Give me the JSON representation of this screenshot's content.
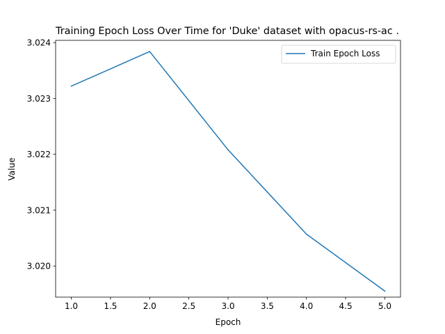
{
  "chart_data": {
    "type": "line",
    "title": "Training Epoch Loss Over Time for 'Duke' dataset with opacus-rs-ac .",
    "xlabel": "Epoch",
    "ylabel": "Value",
    "x": [
      1.0,
      2.0,
      3.0,
      4.0,
      5.0
    ],
    "series": [
      {
        "name": "Train Epoch Loss",
        "values": [
          3.02322,
          3.02384,
          3.02208,
          3.02057,
          3.01955
        ],
        "color": "#1f77b4"
      }
    ],
    "xlim": [
      0.8,
      5.2
    ],
    "ylim": [
      3.019442,
      3.02404
    ],
    "xticks": [
      {
        "value": 1.0,
        "label": "1.0"
      },
      {
        "value": 1.5,
        "label": "1.5"
      },
      {
        "value": 2.0,
        "label": "2.0"
      },
      {
        "value": 2.5,
        "label": "2.5"
      },
      {
        "value": 3.0,
        "label": "3.0"
      },
      {
        "value": 3.5,
        "label": "3.5"
      },
      {
        "value": 4.0,
        "label": "4.0"
      },
      {
        "value": 4.5,
        "label": "4.5"
      },
      {
        "value": 5.0,
        "label": "5.0"
      }
    ],
    "yticks": [
      {
        "value": 3.02,
        "label": "3.020"
      },
      {
        "value": 3.021,
        "label": "3.021"
      },
      {
        "value": 3.022,
        "label": "3.022"
      },
      {
        "value": 3.023,
        "label": "3.023"
      },
      {
        "value": 3.024,
        "label": "3.024"
      }
    ],
    "grid": false,
    "legend_position": "top-right"
  }
}
